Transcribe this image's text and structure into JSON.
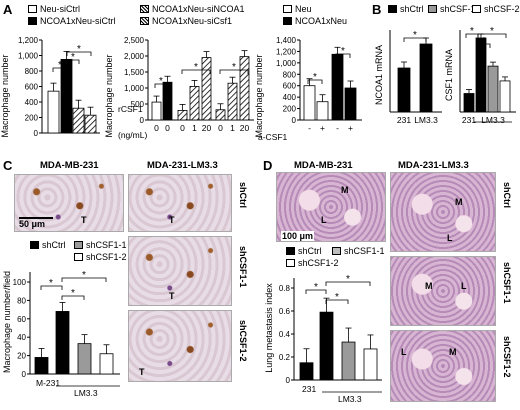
{
  "panels": {
    "A": "A",
    "B": "B",
    "C": "C",
    "D": "D"
  },
  "legendA": [
    {
      "label": "Neu-siCtrl",
      "style": "white"
    },
    {
      "label": "NCOA1xNeu-siNCOA1",
      "style": "hatch"
    },
    {
      "label": "NCOA1xNeu-siCtrl",
      "style": "black"
    },
    {
      "label": "NCOA1xNeu-siCsf1",
      "style": "hatch"
    }
  ],
  "legendA3": [
    {
      "label": "Neu",
      "style": "white"
    },
    {
      "label": "NCOA1xNeu",
      "style": "black"
    }
  ],
  "legendB": [
    {
      "label": "shCtrl",
      "style": "black"
    },
    {
      "label": "shCSF-1",
      "style": "gray"
    },
    {
      "label": "shCSF-2",
      "style": "white"
    }
  ],
  "axis": {
    "macrophage_number": "Macrophage number",
    "rcsf1": "rCSF1",
    "rcsf1_unit": "(ng/mL)",
    "acsf1": "a-CSF1",
    "ncoa1_mrna": "NCOA1 mRNA",
    "csf1_mrna": "CSF1 mRNA",
    "macrophage_field": "Macrophage number/field",
    "lung_metastasis": "Lung metastasis index"
  },
  "panelC": {
    "title_left": "MDA-MB-231",
    "title_right": "MDA-231-LM3.3",
    "scale": "50 μm",
    "t_label": "T",
    "row_labels": [
      "shCtrl",
      "shCSF1-1",
      "shCSF1-2"
    ],
    "legend": [
      {
        "label": "shCtrl",
        "style": "black"
      },
      {
        "label": "shCSF1-1",
        "style": "gray"
      },
      {
        "label": "shCSF1-2",
        "style": "white"
      }
    ],
    "xlabels": [
      "M-231",
      "LM3.3"
    ]
  },
  "panelD": {
    "title_left": "MDA-MB-231",
    "title_right": "MDA-231-LM3.3",
    "scale": "100 μm",
    "row_labels": [
      "shCtrl",
      "shCSF1-1",
      "shCSF1-2"
    ],
    "m_label": "M",
    "l_label": "L",
    "legend": [
      {
        "label": "shCtrl",
        "style": "black"
      },
      {
        "label": "shCSF1-1",
        "style": "gray"
      },
      {
        "label": "shCSF1-2",
        "style": "white"
      }
    ],
    "xlabels": [
      "231",
      "LM3.3"
    ]
  },
  "chart_data": [
    {
      "id": "A1",
      "type": "bar",
      "ylabel": "Macrophage number",
      "ylim": [
        0,
        1200
      ],
      "yticks": [
        "0",
        "200",
        "400",
        "600",
        "800",
        "1,000",
        "1,200"
      ],
      "values": [
        540,
        950,
        320,
        230
      ],
      "styles": [
        "white",
        "black",
        "hatch",
        "hatch"
      ]
    },
    {
      "id": "A2",
      "type": "bar",
      "ylabel": "Macrophage number",
      "ylim": [
        0,
        2500
      ],
      "yticks": [
        "0",
        "500",
        "1,000",
        "1,500",
        "2,000",
        "2,500"
      ],
      "xlabels": [
        "0",
        "0",
        "0",
        "1",
        "20",
        "0",
        "1",
        "20"
      ],
      "values": [
        560,
        1180,
        300,
        1050,
        1950,
        320,
        1150,
        1980
      ],
      "styles": [
        "white",
        "black",
        "hatch",
        "hatch",
        "hatch",
        "hatch",
        "hatch",
        "hatch"
      ]
    },
    {
      "id": "A3",
      "type": "bar",
      "ylabel": "Macrophage number",
      "ylim": [
        0,
        1400
      ],
      "yticks": [
        "0",
        "200",
        "400",
        "600",
        "800",
        "1,000",
        "1,200",
        "1,400"
      ],
      "xlabels": [
        "-",
        "+",
        "-",
        "+"
      ],
      "values": [
        600,
        320,
        1150,
        560
      ],
      "styles": [
        "white",
        "white",
        "black",
        "black"
      ]
    },
    {
      "id": "B1",
      "type": "bar",
      "ylabel": "NCOA1 mRNA",
      "ylim": [
        0,
        1.0
      ],
      "xlabels": [
        "231",
        "LM3.3"
      ],
      "values": [
        0.55,
        0.85
      ],
      "styles": [
        "black",
        "black"
      ]
    },
    {
      "id": "B2",
      "type": "bar",
      "ylabel": "CSF1 mRNA",
      "ylim": [
        0,
        1.0
      ],
      "xlabels": [
        "231",
        "LM3.3"
      ],
      "values": [
        0.25,
        1.0,
        0.62,
        0.42
      ],
      "styles": [
        "black",
        "black",
        "gray",
        "white"
      ]
    },
    {
      "id": "C",
      "type": "bar",
      "ylabel": "Macrophage number/field",
      "ylim": [
        0,
        100
      ],
      "yticks": [
        "0",
        "20",
        "40",
        "60",
        "80",
        "100"
      ],
      "xlabels": [
        "M-231",
        "LM3.3"
      ],
      "values": [
        18,
        68,
        33,
        22
      ],
      "styles": [
        "black",
        "black",
        "gray",
        "white"
      ]
    },
    {
      "id": "D",
      "type": "bar",
      "ylabel": "Lung metastasis index",
      "ylim": [
        0,
        0.8
      ],
      "yticks": [
        "0",
        "0.2",
        "0.4",
        "0.6",
        "0.8"
      ],
      "xlabels": [
        "231",
        "LM3.3"
      ],
      "values": [
        0.15,
        0.59,
        0.33,
        0.27
      ],
      "styles": [
        "black",
        "black",
        "gray",
        "white"
      ]
    }
  ]
}
